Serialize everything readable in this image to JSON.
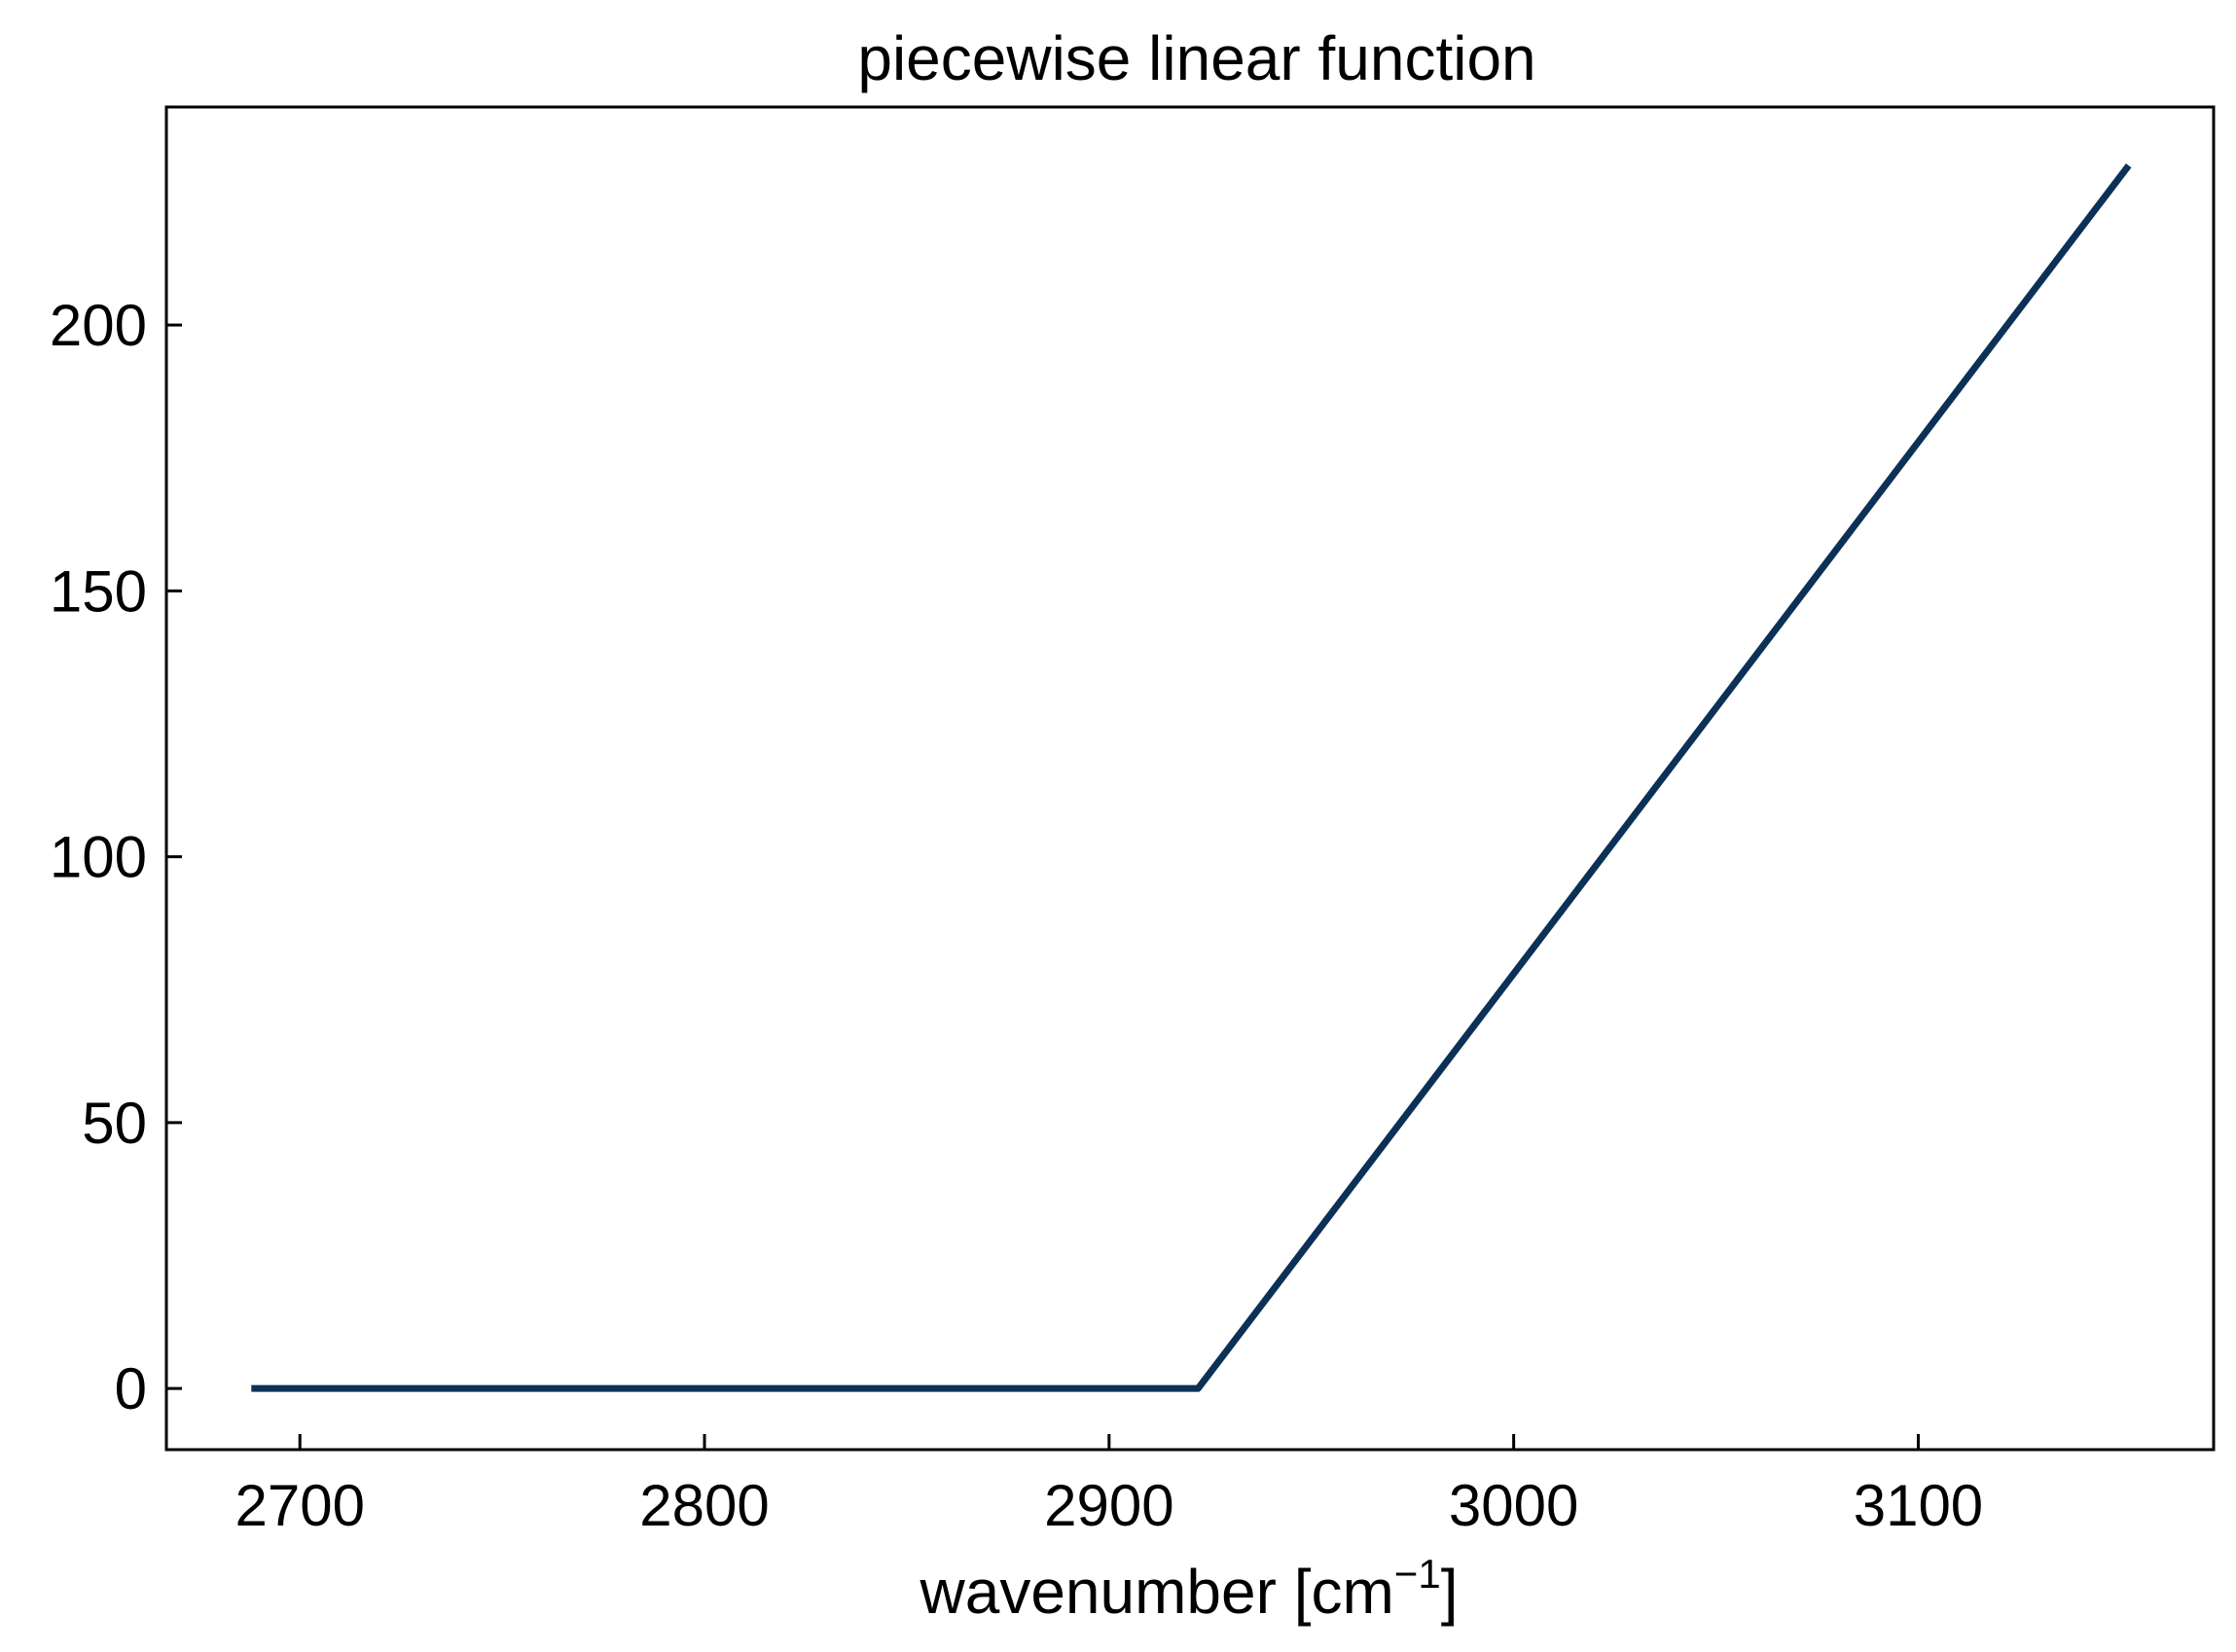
{
  "chart_data": {
    "type": "line",
    "title": "piecewise linear function",
    "xlabel": "wavenumber [cm",
    "xlabel_superscript": "−1",
    "xlabel_suffix": "]",
    "ylabel": "",
    "xlim": [
      2667,
      3173
    ],
    "ylim": [
      -11.5,
      241
    ],
    "xticks": [
      2700,
      2800,
      2900,
      3000,
      3100
    ],
    "xtick_labels": [
      "2700",
      "2800",
      "2900",
      "3000",
      "3100"
    ],
    "yticks": [
      0,
      50,
      100,
      150,
      200
    ],
    "ytick_labels": [
      "0",
      "50",
      "100",
      "150",
      "200"
    ],
    "grid": false,
    "legend": "none",
    "series": [
      {
        "color": "#0b3157",
        "x": [
          2688,
          2922,
          3152
        ],
        "y": [
          0,
          0,
          230
        ]
      }
    ]
  }
}
